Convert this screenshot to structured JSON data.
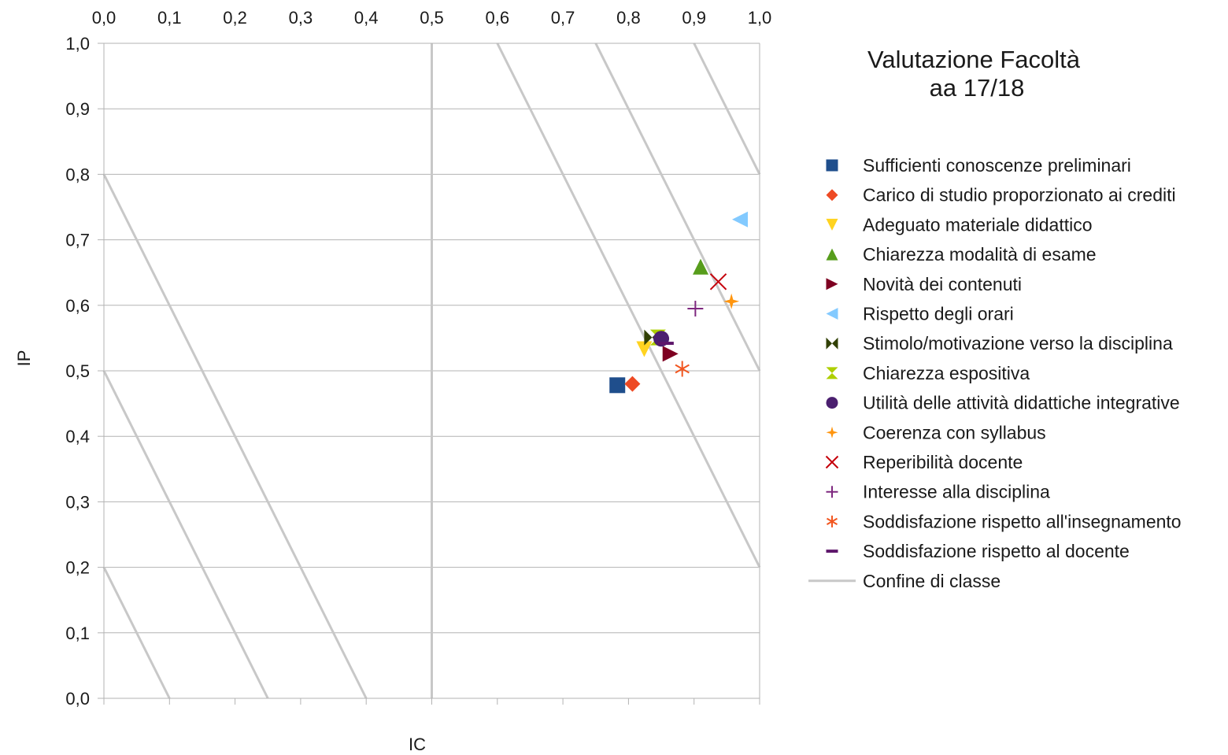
{
  "chart_data": {
    "type": "scatter",
    "title": "Valutazione Facoltà",
    "subtitle": "aa 17/18",
    "xlabel": "IC",
    "ylabel": "IP",
    "xlim": [
      0,
      1
    ],
    "ylim": [
      0,
      1
    ],
    "x_ticks": [
      "0,0",
      "0,1",
      "0,2",
      "0,3",
      "0,4",
      "0,5",
      "0,6",
      "0,7",
      "0,8",
      "0,9",
      "1,0"
    ],
    "y_ticks": [
      "0,0",
      "0,1",
      "0,2",
      "0,3",
      "0,4",
      "0,5",
      "0,6",
      "0,7",
      "0,8",
      "0,9",
      "1,0"
    ],
    "grid": true,
    "legend_position": "right",
    "series": [
      {
        "name": "Sufficienti conoscenze preliminari",
        "marker": "square",
        "color": "#1f4e8c",
        "x": 0.783,
        "y": 0.478
      },
      {
        "name": "Carico di studio proporzionato ai crediti",
        "marker": "diamond",
        "color": "#ee4a24",
        "x": 0.806,
        "y": 0.48
      },
      {
        "name": "Adeguato materiale didattico",
        "marker": "triangle-down",
        "color": "#ffd320",
        "x": 0.824,
        "y": 0.533
      },
      {
        "name": "Chiarezza modalità di esame",
        "marker": "triangle-up",
        "color": "#579d1c",
        "x": 0.91,
        "y": 0.659
      },
      {
        "name": "Novità dei contenuti",
        "marker": "triangle-right",
        "color": "#7e0021",
        "x": 0.864,
        "y": 0.526
      },
      {
        "name": "Rispetto degli orari",
        "marker": "triangle-left",
        "color": "#83caff",
        "x": 0.97,
        "y": 0.731
      },
      {
        "name": "Stimolo/motivazione verso la disciplina",
        "marker": "bowtie",
        "color": "#314004",
        "x": 0.836,
        "y": 0.551
      },
      {
        "name": "Chiarezza espositiva",
        "marker": "hourglass",
        "color": "#aecf00",
        "x": 0.845,
        "y": 0.551
      },
      {
        "name": "Utilità delle attività didattiche integrative",
        "marker": "circle",
        "color": "#4b1f6f",
        "x": 0.85,
        "y": 0.549
      },
      {
        "name": "Coerenza con syllabus",
        "marker": "star4",
        "color": "#ff950e",
        "x": 0.957,
        "y": 0.606
      },
      {
        "name": "Reperibilità docente",
        "marker": "x",
        "color": "#c5000b",
        "x": 0.937,
        "y": 0.636
      },
      {
        "name": "Interesse alla disciplina",
        "marker": "plus",
        "color": "#7e287f",
        "x": 0.902,
        "y": 0.595
      },
      {
        "name": "Soddisfazione rispetto all'insegnamento",
        "marker": "asterisk",
        "color": "#f2561f",
        "x": 0.882,
        "y": 0.503
      },
      {
        "name": "Soddisfazione rispetto al docente",
        "marker": "dash",
        "color": "#5e176b",
        "x": 0.857,
        "y": 0.542
      }
    ],
    "class_boundary": {
      "name": "Confine di classe",
      "color": "#c8c8c8",
      "lines": [
        [
          [
            0.0,
            0.2
          ],
          [
            0.1,
            0.0
          ]
        ],
        [
          [
            0.0,
            0.5
          ],
          [
            0.25,
            0.0
          ]
        ],
        [
          [
            0.0,
            0.8
          ],
          [
            0.4,
            0.0
          ]
        ],
        [
          [
            0.5,
            0.0
          ],
          [
            0.5,
            1.0
          ]
        ],
        [
          [
            0.6,
            1.0
          ],
          [
            1.0,
            0.2
          ]
        ],
        [
          [
            0.75,
            1.0
          ],
          [
            1.0,
            0.5
          ]
        ],
        [
          [
            0.9,
            1.0
          ],
          [
            1.0,
            0.8
          ]
        ]
      ]
    }
  }
}
